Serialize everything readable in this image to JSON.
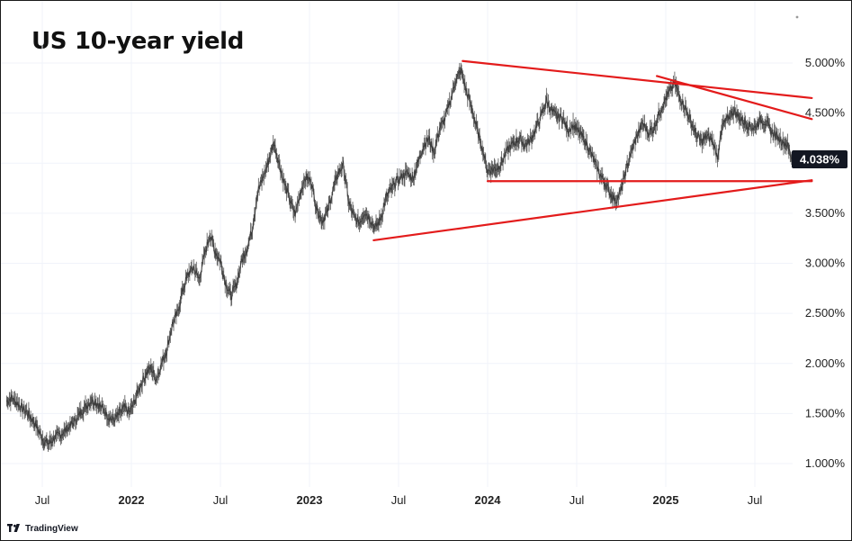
{
  "title": "US 10-year yield",
  "brand": {
    "name": "TradingView",
    "icon": "tradingview-logo-icon"
  },
  "last_value_label": "4.038%",
  "colors": {
    "price": "#555555",
    "trendlines": "#e31b1b",
    "last_tag_bg": "#131722"
  },
  "chart_data": {
    "type": "line",
    "title": "US 10-year yield",
    "xlabel": "",
    "ylabel": "",
    "y_unit": "%",
    "ylim": [
      0.75,
      5.35
    ],
    "xlim": [
      2021.3,
      2025.82
    ],
    "grid": true,
    "legend": "none",
    "y_ticks": [
      "1.000%",
      "1.500%",
      "2.000%",
      "2.500%",
      "3.000%",
      "3.500%",
      "4.000%",
      "4.500%",
      "5.000%"
    ],
    "y_tick_values": [
      1.0,
      1.5,
      2.0,
      2.5,
      3.0,
      3.5,
      4.0,
      4.5,
      5.0
    ],
    "x_ticks": [
      {
        "label": "Jul",
        "t": 2021.5,
        "bold": false
      },
      {
        "label": "2022",
        "t": 2022.0,
        "bold": true
      },
      {
        "label": "Jul",
        "t": 2022.5,
        "bold": false
      },
      {
        "label": "2023",
        "t": 2023.0,
        "bold": true
      },
      {
        "label": "Jul",
        "t": 2023.5,
        "bold": false
      },
      {
        "label": "2024",
        "t": 2024.0,
        "bold": true
      },
      {
        "label": "Jul",
        "t": 2024.5,
        "bold": false
      },
      {
        "label": "2025",
        "t": 2025.0,
        "bold": true
      },
      {
        "label": "Jul",
        "t": 2025.5,
        "bold": false
      }
    ],
    "series": [
      {
        "x": [
          2021.3,
          2021.33,
          2021.36,
          2021.39,
          2021.42,
          2021.45,
          2021.48,
          2021.51,
          2021.54,
          2021.57,
          2021.6,
          2021.63,
          2021.66,
          2021.69,
          2021.72,
          2021.75,
          2021.78,
          2021.81,
          2021.84,
          2021.87,
          2021.9,
          2021.93,
          2021.96,
          2021.99,
          2022.02,
          2022.05,
          2022.08,
          2022.11,
          2022.14,
          2022.17,
          2022.2,
          2022.23,
          2022.26,
          2022.29,
          2022.32,
          2022.35,
          2022.38,
          2022.41,
          2022.44,
          2022.47,
          2022.5,
          2022.53,
          2022.56,
          2022.59,
          2022.62,
          2022.65,
          2022.68,
          2022.71,
          2022.74,
          2022.77,
          2022.8,
          2022.83,
          2022.86,
          2022.89,
          2022.92,
          2022.95,
          2022.98,
          2023.01,
          2023.04,
          2023.07,
          2023.1,
          2023.13,
          2023.16,
          2023.19,
          2023.22,
          2023.25,
          2023.28,
          2023.31,
          2023.34,
          2023.37,
          2023.4,
          2023.43,
          2023.46,
          2023.49,
          2023.52,
          2023.55,
          2023.58,
          2023.61,
          2023.64,
          2023.67,
          2023.7,
          2023.73,
          2023.76,
          2023.79,
          2023.82,
          2023.85,
          2023.88,
          2023.91,
          2023.94,
          2023.97,
          2024.0,
          2024.03,
          2024.06,
          2024.09,
          2024.12,
          2024.15,
          2024.18,
          2024.21,
          2024.24,
          2024.27,
          2024.3,
          2024.33,
          2024.36,
          2024.39,
          2024.42,
          2024.45,
          2024.48,
          2024.51,
          2024.54,
          2024.57,
          2024.6,
          2024.63,
          2024.66,
          2024.69,
          2024.72,
          2024.75,
          2024.78,
          2024.81,
          2024.84,
          2024.87,
          2024.9,
          2024.93,
          2024.96,
          2024.99,
          2025.02,
          2025.05,
          2025.08,
          2025.11,
          2025.14,
          2025.17,
          2025.2,
          2025.23,
          2025.26,
          2025.29,
          2025.32,
          2025.35,
          2025.38,
          2025.41,
          2025.44,
          2025.47,
          2025.5,
          2025.53,
          2025.56,
          2025.59,
          2025.62,
          2025.65,
          2025.68,
          2025.71
        ],
        "y": [
          1.62,
          1.66,
          1.6,
          1.55,
          1.5,
          1.43,
          1.32,
          1.22,
          1.2,
          1.26,
          1.29,
          1.33,
          1.38,
          1.44,
          1.52,
          1.58,
          1.64,
          1.6,
          1.55,
          1.47,
          1.43,
          1.49,
          1.56,
          1.51,
          1.63,
          1.78,
          1.89,
          1.96,
          1.84,
          2.0,
          2.14,
          2.39,
          2.51,
          2.74,
          2.9,
          2.96,
          2.84,
          3.07,
          3.29,
          3.12,
          3.02,
          2.8,
          2.67,
          2.79,
          3.03,
          3.15,
          3.36,
          3.72,
          3.86,
          4.02,
          4.21,
          4.0,
          3.79,
          3.63,
          3.49,
          3.72,
          3.86,
          3.82,
          3.55,
          3.42,
          3.51,
          3.72,
          3.9,
          3.98,
          3.61,
          3.46,
          3.4,
          3.52,
          3.44,
          3.35,
          3.45,
          3.66,
          3.74,
          3.82,
          3.87,
          3.9,
          3.85,
          4.01,
          4.18,
          4.25,
          4.1,
          4.35,
          4.44,
          4.62,
          4.82,
          4.93,
          4.72,
          4.56,
          4.34,
          4.15,
          3.92,
          3.94,
          3.96,
          4.05,
          4.16,
          4.2,
          4.25,
          4.18,
          4.23,
          4.34,
          4.47,
          4.63,
          4.52,
          4.46,
          4.45,
          4.33,
          4.38,
          4.31,
          4.24,
          4.15,
          4.01,
          3.89,
          3.8,
          3.69,
          3.62,
          3.73,
          3.95,
          4.14,
          4.28,
          4.4,
          4.31,
          4.34,
          4.48,
          4.61,
          4.71,
          4.8,
          4.66,
          4.55,
          4.42,
          4.29,
          4.21,
          4.27,
          4.23,
          4.07,
          4.38,
          4.45,
          4.52,
          4.46,
          4.41,
          4.37,
          4.35,
          4.43,
          4.41,
          4.32,
          4.28,
          4.22,
          4.19,
          4.04
        ]
      }
    ],
    "trendlines": [
      {
        "name": "upper-left",
        "x": [
          2023.86,
          2025.82
        ],
        "y": [
          5.02,
          4.65
        ]
      },
      {
        "name": "upper-right",
        "x": [
          2024.95,
          2025.82
        ],
        "y": [
          4.87,
          4.44
        ]
      },
      {
        "name": "support",
        "x": [
          2024.0,
          2025.82
        ],
        "y": [
          3.82,
          3.82
        ]
      },
      {
        "name": "lower",
        "x": [
          2023.36,
          2025.82
        ],
        "y": [
          3.23,
          3.83
        ]
      }
    ],
    "last_value": 4.038
  }
}
